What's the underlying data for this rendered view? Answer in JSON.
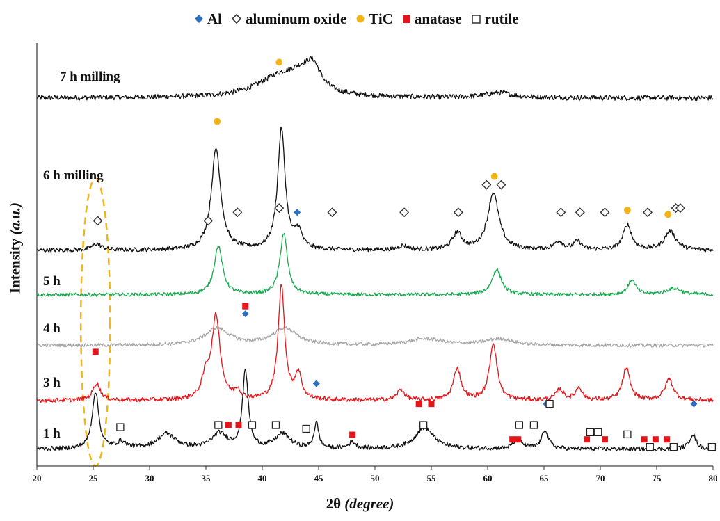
{
  "chart_data": {
    "type": "line",
    "xlabel_main": "2θ",
    "xlabel_unit": "(degree)",
    "ylabel_main": "Intensity",
    "ylabel_unit": "(a.u.)",
    "xlim": [
      20,
      80
    ],
    "xticks": [
      20,
      25,
      30,
      35,
      40,
      45,
      50,
      55,
      60,
      65,
      70,
      75,
      80
    ],
    "legend": {
      "placement": "top",
      "entries": [
        {
          "label": "Al",
          "marker": "filled-diamond",
          "color": "#2a6fc0"
        },
        {
          "label": "aluminum oxide",
          "marker": "open-diamond",
          "color": "#333333"
        },
        {
          "label": "TiC",
          "marker": "filled-circle",
          "color": "#f2b417"
        },
        {
          "label": "anatase",
          "marker": "filled-square",
          "color": "#e4161c"
        },
        {
          "label": "rutile",
          "marker": "open-square",
          "color": "#222222"
        }
      ]
    },
    "series": [
      {
        "name": "7 h milling",
        "color": "#111111",
        "baseline": 0.87,
        "noise": 0.006,
        "peaks": [
          [
            41.5,
            0.045,
            2.5
          ],
          [
            43.5,
            0.035,
            1.5
          ],
          [
            44.5,
            0.05,
            0.8
          ],
          [
            61,
            0.012,
            1.5
          ]
        ]
      },
      {
        "name": "6 h milling",
        "color": "#111111",
        "baseline": 0.51,
        "noise": 0.005,
        "peaks": [
          [
            25.3,
            0.015,
            0.5
          ],
          [
            35.9,
            0.24,
            0.5
          ],
          [
            41.7,
            0.285,
            0.4
          ],
          [
            43.2,
            0.04,
            0.4
          ],
          [
            52.5,
            0.01,
            0.5
          ],
          [
            57.3,
            0.04,
            0.5
          ],
          [
            60.5,
            0.135,
            0.6
          ],
          [
            66.3,
            0.02,
            0.5
          ],
          [
            68,
            0.02,
            0.4
          ],
          [
            72.4,
            0.06,
            0.45
          ],
          [
            76.2,
            0.045,
            0.6
          ]
        ]
      },
      {
        "name": "5 h",
        "color": "#17a94e",
        "baseline": 0.405,
        "noise": 0.004,
        "peaks": [
          [
            36.1,
            0.115,
            0.45
          ],
          [
            41.9,
            0.145,
            0.4
          ],
          [
            60.8,
            0.06,
            0.5
          ],
          [
            72.8,
            0.035,
            0.4
          ],
          [
            76.5,
            0.015,
            0.8
          ]
        ]
      },
      {
        "name": "4 h",
        "color": "#a7a7a7",
        "baseline": 0.285,
        "noise": 0.004,
        "peaks": [
          [
            36,
            0.04,
            1.3
          ],
          [
            42,
            0.04,
            1.3
          ],
          [
            54.5,
            0.015,
            1.8
          ],
          [
            61,
            0.015,
            1.5
          ]
        ]
      },
      {
        "name": "3 h",
        "color": "#e4161c",
        "baseline": 0.155,
        "noise": 0.005,
        "peaks": [
          [
            25.3,
            0.04,
            0.4
          ],
          [
            35,
            0.05,
            0.4
          ],
          [
            35.9,
            0.195,
            0.45
          ],
          [
            37.8,
            0.02,
            0.3
          ],
          [
            41.7,
            0.27,
            0.35
          ],
          [
            43.2,
            0.06,
            0.35
          ],
          [
            52.3,
            0.025,
            0.4
          ],
          [
            57.3,
            0.075,
            0.4
          ],
          [
            60.5,
            0.135,
            0.4
          ],
          [
            66.4,
            0.025,
            0.4
          ],
          [
            68.1,
            0.03,
            0.35
          ],
          [
            72.3,
            0.075,
            0.4
          ],
          [
            76.1,
            0.05,
            0.45
          ]
        ]
      },
      {
        "name": "1 h",
        "color": "#111111",
        "baseline": 0.04,
        "noise": 0.005,
        "peaks": [
          [
            25.2,
            0.135,
            0.35
          ],
          [
            27.5,
            0.015,
            0.5
          ],
          [
            31.5,
            0.035,
            1.0
          ],
          [
            36.2,
            0.035,
            0.8
          ],
          [
            38.5,
            0.185,
            0.3
          ],
          [
            41.8,
            0.035,
            0.8
          ],
          [
            44.8,
            0.06,
            0.25
          ],
          [
            48,
            0.015,
            0.4
          ],
          [
            54.4,
            0.05,
            1.0
          ],
          [
            62.7,
            0.02,
            0.5
          ],
          [
            65.1,
            0.045,
            0.35
          ],
          [
            78.2,
            0.035,
            0.35
          ]
        ]
      }
    ],
    "markers": [
      {
        "type": "TiC",
        "x": 41.5,
        "y": 0.955
      },
      {
        "type": "TiC",
        "x": 36.0,
        "y": 0.815
      },
      {
        "type": "TiC",
        "x": 60.6,
        "y": 0.685
      },
      {
        "type": "TiC",
        "x": 72.4,
        "y": 0.605
      },
      {
        "type": "TiC",
        "x": 76.0,
        "y": 0.595
      },
      {
        "type": "aluminum oxide",
        "x": 25.4,
        "y": 0.58
      },
      {
        "type": "aluminum oxide",
        "x": 35.2,
        "y": 0.58
      },
      {
        "type": "aluminum oxide",
        "x": 37.8,
        "y": 0.6
      },
      {
        "type": "aluminum oxide",
        "x": 41.5,
        "y": 0.61
      },
      {
        "type": "aluminum oxide",
        "x": 46.2,
        "y": 0.6
      },
      {
        "type": "aluminum oxide",
        "x": 52.6,
        "y": 0.6
      },
      {
        "type": "aluminum oxide",
        "x": 57.4,
        "y": 0.6
      },
      {
        "type": "aluminum oxide",
        "x": 59.9,
        "y": 0.665
      },
      {
        "type": "aluminum oxide",
        "x": 61.2,
        "y": 0.665
      },
      {
        "type": "aluminum oxide",
        "x": 66.5,
        "y": 0.6
      },
      {
        "type": "aluminum oxide",
        "x": 68.2,
        "y": 0.6
      },
      {
        "type": "aluminum oxide",
        "x": 70.4,
        "y": 0.6
      },
      {
        "type": "aluminum oxide",
        "x": 74.2,
        "y": 0.6
      },
      {
        "type": "aluminum oxide",
        "x": 76.7,
        "y": 0.61
      },
      {
        "type": "aluminum oxide",
        "x": 77.1,
        "y": 0.61
      },
      {
        "type": "Al",
        "x": 43.1,
        "y": 0.6
      },
      {
        "type": "Al",
        "x": 38.5,
        "y": 0.36
      },
      {
        "type": "Al",
        "x": 44.8,
        "y": 0.195
      },
      {
        "type": "Al",
        "x": 65.2,
        "y": 0.147
      },
      {
        "type": "Al",
        "x": 78.3,
        "y": 0.147
      },
      {
        "type": "anatase",
        "x": 38.5,
        "y": 0.378
      },
      {
        "type": "anatase",
        "x": 25.2,
        "y": 0.27
      },
      {
        "type": "anatase",
        "x": 37.0,
        "y": 0.097
      },
      {
        "type": "anatase",
        "x": 37.9,
        "y": 0.097
      },
      {
        "type": "anatase",
        "x": 48.0,
        "y": 0.074
      },
      {
        "type": "anatase",
        "x": 53.9,
        "y": 0.147
      },
      {
        "type": "anatase",
        "x": 55.0,
        "y": 0.147
      },
      {
        "type": "anatase",
        "x": 62.2,
        "y": 0.063
      },
      {
        "type": "anatase",
        "x": 62.7,
        "y": 0.063
      },
      {
        "type": "anatase",
        "x": 68.8,
        "y": 0.063
      },
      {
        "type": "anatase",
        "x": 70.4,
        "y": 0.063
      },
      {
        "type": "anatase",
        "x": 73.9,
        "y": 0.063
      },
      {
        "type": "anatase",
        "x": 74.9,
        "y": 0.063
      },
      {
        "type": "anatase",
        "x": 75.9,
        "y": 0.063
      },
      {
        "type": "rutile",
        "x": 27.4,
        "y": 0.092
      },
      {
        "type": "rutile",
        "x": 36.1,
        "y": 0.097
      },
      {
        "type": "rutile",
        "x": 39.1,
        "y": 0.097
      },
      {
        "type": "rutile",
        "x": 41.2,
        "y": 0.097
      },
      {
        "type": "rutile",
        "x": 43.9,
        "y": 0.088
      },
      {
        "type": "rutile",
        "x": 54.3,
        "y": 0.097
      },
      {
        "type": "rutile",
        "x": 62.8,
        "y": 0.097
      },
      {
        "type": "rutile",
        "x": 64.1,
        "y": 0.097
      },
      {
        "type": "rutile",
        "x": 65.5,
        "y": 0.147
      },
      {
        "type": "rutile",
        "x": 69.1,
        "y": 0.08
      },
      {
        "type": "rutile",
        "x": 69.8,
        "y": 0.08
      },
      {
        "type": "rutile",
        "x": 72.4,
        "y": 0.075
      },
      {
        "type": "rutile",
        "x": 74.4,
        "y": 0.045
      },
      {
        "type": "rutile",
        "x": 76.5,
        "y": 0.045
      },
      {
        "type": "rutile",
        "x": 79.9,
        "y": 0.045
      }
    ],
    "annotation": {
      "shape": "dashed-ellipse",
      "color": "#f2b417",
      "x_center": 25.2,
      "x_halfwidth": 1.3,
      "y_range": [
        0.0,
        0.68
      ]
    }
  }
}
